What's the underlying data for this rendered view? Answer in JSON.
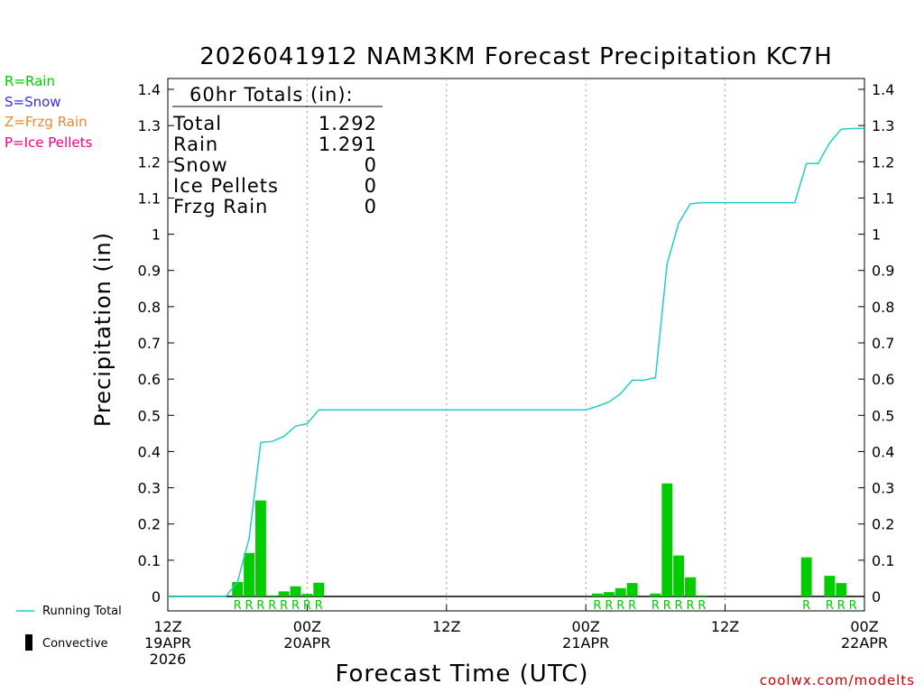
{
  "title": "2026041912 NAM3KM Forecast Precipitation KC7H",
  "xlabel": "Forecast Time (UTC)",
  "ylabel": "Precipitation (in)",
  "credit": "coolwx.com/modelts",
  "type_legend": [
    {
      "label": "R=Rain",
      "color": "#00cc00"
    },
    {
      "label": "S=Snow",
      "color": "#3333dd"
    },
    {
      "label": "Z=Frzg Rain",
      "color": "#ee8833"
    },
    {
      "label": "P=Ice Pellets",
      "color": "#ee0088"
    }
  ],
  "bottom_legend": {
    "running_total": "Running Total",
    "convective": "Convective"
  },
  "totals": {
    "header": "60hr Totals (in):",
    "rows": [
      {
        "label": "Total",
        "value": "1.292"
      },
      {
        "label": "Rain",
        "value": "1.291"
      },
      {
        "label": "Snow",
        "value": "0"
      },
      {
        "label": "Ice Pellets",
        "value": "0"
      },
      {
        "label": "Frzg Rain",
        "value": "0"
      }
    ]
  },
  "colors": {
    "bars": "#00cc00",
    "running_total": "#22cccc",
    "type_label": "#00cc00",
    "grid": "#999999"
  },
  "chart_data": {
    "type": "bar",
    "x_unit": "forecast hour",
    "xlim": [
      0,
      60
    ],
    "ylim": [
      0,
      1.4
    ],
    "yticks": [
      0,
      0.1,
      0.2,
      0.3,
      0.4,
      0.5,
      0.6,
      0.7,
      0.8,
      0.9,
      1,
      1.1,
      1.2,
      1.3,
      1.4
    ],
    "ytick_labels": [
      "0",
      "0.1",
      "0.2",
      "0.3",
      "0.4",
      "0.5",
      "0.6",
      "0.7",
      "0.8",
      "0.9",
      "1",
      "1.1",
      "1.2",
      "1.3",
      "1.4"
    ],
    "xticks": [
      {
        "hour": 0,
        "lines": [
          "12Z",
          "19APR",
          "2026"
        ]
      },
      {
        "hour": 12,
        "lines": [
          "00Z",
          "20APR"
        ]
      },
      {
        "hour": 24,
        "lines": [
          "12Z"
        ]
      },
      {
        "hour": 36,
        "lines": [
          "00Z",
          "21APR"
        ]
      },
      {
        "hour": 48,
        "lines": [
          "12Z"
        ]
      },
      {
        "hour": 60,
        "lines": [
          "00Z",
          "22APR"
        ]
      }
    ],
    "grid": "vertical dotted at 00Z/12Z",
    "series": [
      {
        "name": "Running Total",
        "kind": "line",
        "x": [
          0,
          1,
          2,
          3,
          4,
          5,
          6,
          7,
          8,
          9,
          10,
          11,
          12,
          13,
          14,
          15,
          36,
          37,
          38,
          39,
          40,
          41,
          42,
          43,
          44,
          45,
          46,
          47,
          48,
          49,
          50,
          51,
          52,
          53,
          54,
          55,
          56,
          57,
          58,
          59,
          60
        ],
        "y": [
          0,
          0,
          0,
          0,
          0,
          0,
          0.04,
          0.16,
          0.425,
          0.428,
          0.442,
          0.47,
          0.477,
          0.515,
          0.515,
          0.515,
          0.515,
          0.525,
          0.537,
          0.56,
          0.597,
          0.597,
          0.604,
          0.918,
          1.031,
          1.084,
          1.087,
          1.087,
          1.087,
          1.087,
          1.087,
          1.087,
          1.087,
          1.087,
          1.087,
          1.195,
          1.195,
          1.252,
          1.29,
          1.292,
          1.292
        ]
      },
      {
        "name": "Precipitation",
        "kind": "bar",
        "hours": [
          6,
          7,
          8,
          9,
          10,
          11,
          12,
          13,
          14,
          37,
          38,
          39,
          40,
          41,
          42,
          43,
          44,
          45,
          46,
          55,
          56,
          57,
          58
        ],
        "values": [
          0.04,
          0.12,
          0.265,
          0.003,
          0.014,
          0.028,
          0.007,
          0.038,
          0.0,
          0.008,
          0.012,
          0.023,
          0.037,
          0.0,
          0.008,
          0.312,
          0.113,
          0.053,
          0.003,
          0.108,
          0.0,
          0.057,
          0.037
        ],
        "type_labels": [
          "R",
          "R",
          "R",
          "R",
          "R",
          "R",
          "R",
          "R",
          "",
          "R",
          "R",
          "R",
          "R",
          "",
          "R",
          "R",
          "R",
          "R",
          "R",
          "R",
          "",
          "R",
          "R"
        ]
      }
    ],
    "extra_type_labels": [
      {
        "hour": 59,
        "label": "R"
      }
    ]
  }
}
